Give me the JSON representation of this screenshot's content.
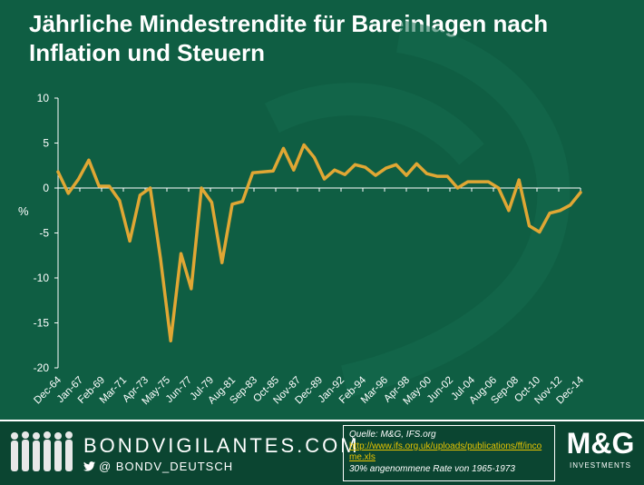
{
  "title": "Jährliche Mindestrendite für Bareinlagen nach Inflation und Steuern",
  "chart_data": {
    "type": "line",
    "title": "Jährliche Mindestrendite für Bareinlagen nach Inflation und Steuern",
    "ylabel": "%",
    "xlabel": "",
    "ylim": [
      -20,
      10
    ],
    "yticks": [
      10,
      5,
      0,
      -5,
      -10,
      -15,
      -20
    ],
    "grid": false,
    "x_tick_labels": [
      "Dec-64",
      "Jan-67",
      "Feb-69",
      "Mar-71",
      "Apr-73",
      "May-75",
      "Jun-77",
      "Jul-79",
      "Aug-81",
      "Sep-83",
      "Oct-85",
      "Nov-87",
      "Dec-89",
      "Jan-92",
      "Feb-94",
      "Mar-96",
      "Apr-98",
      "May-00",
      "Jun-02",
      "Jul-04",
      "Aug-06",
      "Sep-08",
      "Oct-10",
      "Nov-12",
      "Dec-14"
    ],
    "series": [
      {
        "color": "#e0a734",
        "values": [
          1.8,
          -0.6,
          1.0,
          3.1,
          0.2,
          0.2,
          -1.4,
          -5.9,
          -0.8,
          0.0,
          -7.8,
          -17.0,
          -7.3,
          -11.2,
          0.0,
          -1.6,
          -8.3,
          -1.8,
          -1.5,
          1.7,
          1.8,
          1.9,
          4.4,
          2.0,
          4.8,
          3.4,
          1.0,
          2.0,
          1.5,
          2.6,
          2.3,
          1.4,
          2.2,
          2.6,
          1.4,
          2.7,
          1.6,
          1.3,
          1.3,
          0.0,
          0.7,
          0.7,
          0.7,
          0.0,
          -2.5,
          0.9,
          -4.2,
          -4.9,
          -2.8,
          -2.5,
          -1.9,
          -0.5
        ]
      }
    ]
  },
  "footer": {
    "brand": "BONDVIGILANTES.COM",
    "handle": "@  BONDV_DEUTSCH",
    "source_label": "Quelle: M&G, IFS.org",
    "source_url": "http://www.ifs.org.uk/uploads/publications/ff/income.xls",
    "note": "30% angenommene Rate von 1965-1973",
    "logo_main": "M&G",
    "logo_sub": "INVESTMENTS"
  }
}
